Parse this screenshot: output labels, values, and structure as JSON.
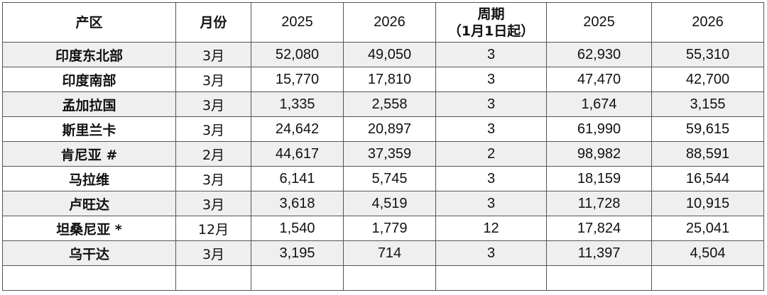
{
  "table": {
    "headers": {
      "region": "产区",
      "month": "月份",
      "y2025_a": "2025",
      "y2026_a": "2026",
      "period_line1": "周期",
      "period_line2": "（1月1日起）",
      "y2025_b": "2025",
      "y2026_b": "2026"
    },
    "rows": [
      {
        "region": "印度东北部",
        "month": "3月",
        "v2025a": "52,080",
        "v2026a": "49,050",
        "period": "3",
        "v2025b": "62,930",
        "v2026b": "55,310"
      },
      {
        "region": "印度南部",
        "month": "3月",
        "v2025a": "15,770",
        "v2026a": "17,810",
        "period": "3",
        "v2025b": "47,470",
        "v2026b": "42,700"
      },
      {
        "region": "孟加拉国",
        "month": "3月",
        "v2025a": "1,335",
        "v2026a": "2,558",
        "period": "3",
        "v2025b": "1,674",
        "v2026b": "3,155"
      },
      {
        "region": "斯里兰卡",
        "month": "3月",
        "v2025a": "24,642",
        "v2026a": "20,897",
        "period": "3",
        "v2025b": "61,990",
        "v2026b": "59,615"
      },
      {
        "region": "肯尼亚 #",
        "month": "2月",
        "v2025a": "44,617",
        "v2026a": "37,359",
        "period": "2",
        "v2025b": "98,982",
        "v2026b": "88,591"
      },
      {
        "region": "马拉维",
        "month": "3月",
        "v2025a": "6,141",
        "v2026a": "5,745",
        "period": "3",
        "v2025b": "18,159",
        "v2026b": "16,544"
      },
      {
        "region": "卢旺达",
        "month": "3月",
        "v2025a": "3,618",
        "v2026a": "4,519",
        "period": "3",
        "v2025b": "11,728",
        "v2026b": "10,915"
      },
      {
        "region": "坦桑尼亚 *",
        "month": "12月",
        "v2025a": "1,540",
        "v2026a": "1,779",
        "period": "12",
        "v2025b": "17,824",
        "v2026b": "25,041"
      },
      {
        "region": "乌干达",
        "month": "3月",
        "v2025a": "3,195",
        "v2026a": "714",
        "period": "3",
        "v2025b": "11,397",
        "v2026b": "4,504"
      }
    ]
  }
}
